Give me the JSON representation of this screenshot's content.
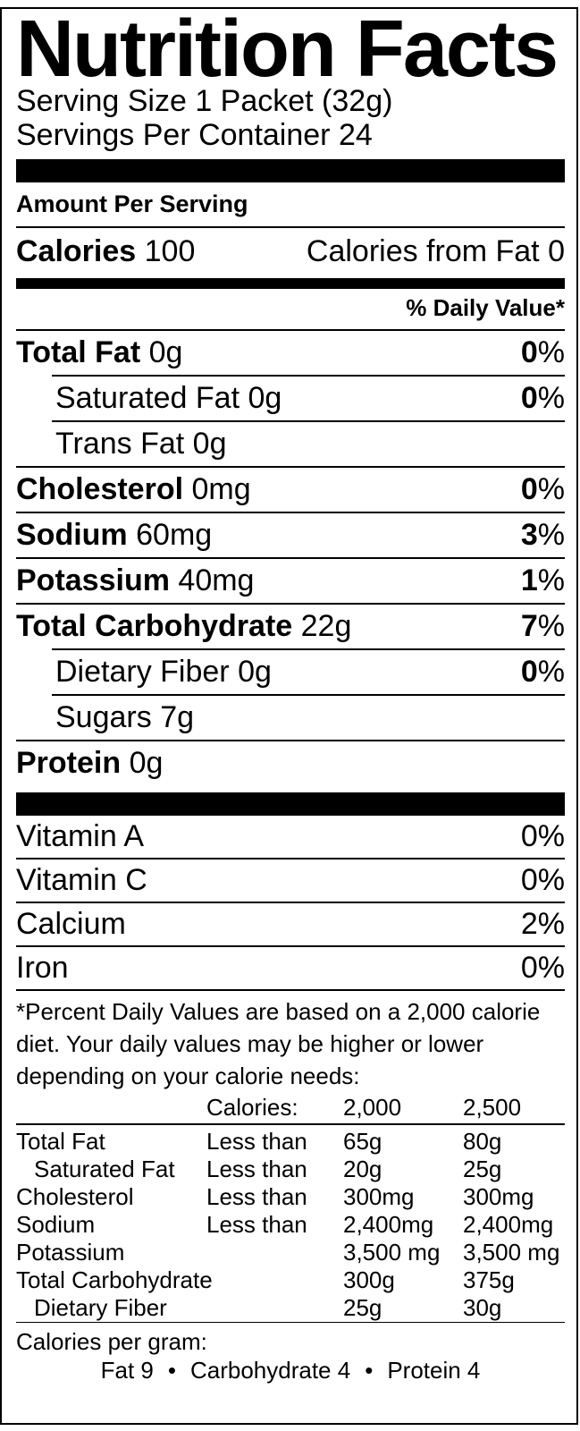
{
  "title": "Nutrition Facts",
  "serving": {
    "size_line": "Serving Size 1 Packet (32g)",
    "per_container_line": "Servings Per Container 24"
  },
  "amount_per_serving_label": "Amount Per Serving",
  "calories_row": {
    "label": "Calories",
    "value": "100",
    "from_fat_label": "Calories from Fat",
    "from_fat_value": "0"
  },
  "daily_value_header": "% Daily Value*",
  "percent_sign": "%",
  "nutrients": [
    {
      "name": "Total Fat",
      "amount": "0g",
      "dv": "0"
    },
    {
      "name": "Saturated Fat",
      "amount": "0g",
      "dv": "0"
    },
    {
      "name": "Trans Fat",
      "amount": "0g"
    },
    {
      "name": "Cholesterol",
      "amount": "0mg",
      "dv": "0"
    },
    {
      "name": "Sodium",
      "amount": "60mg",
      "dv": "3"
    },
    {
      "name": "Potassium",
      "amount": "40mg",
      "dv": "1"
    },
    {
      "name": "Total Carbohydrate",
      "amount": "22g",
      "dv": "7"
    },
    {
      "name": "Dietary Fiber",
      "amount": "0g",
      "dv": "0"
    },
    {
      "name": "Sugars",
      "amount": "7g"
    },
    {
      "name": "Protein",
      "amount": "0g"
    }
  ],
  "vitamins": [
    {
      "name": "Vitamin A",
      "dv": "0"
    },
    {
      "name": "Vitamin C",
      "dv": "0"
    },
    {
      "name": "Calcium",
      "dv": "2"
    },
    {
      "name": "Iron",
      "dv": "0"
    }
  ],
  "footnote": "*Percent Daily Values are based on a 2,000 calorie diet. Your daily values may be higher or lower depending on your calorie needs:",
  "dv_table": {
    "header": {
      "calories_label": "Calories:",
      "col_2000": "2,000",
      "col_2500": "2,500"
    },
    "rows": [
      {
        "label": "Total Fat",
        "qualifier": "Less than",
        "v2000": "65g",
        "v2500": "80g"
      },
      {
        "label": "Saturated Fat",
        "qualifier": "Less than",
        "v2000": "20g",
        "v2500": "25g"
      },
      {
        "label": "Cholesterol",
        "qualifier": "Less than",
        "v2000": "300mg",
        "v2500": "300mg"
      },
      {
        "label": "Sodium",
        "qualifier": "Less than",
        "v2000": "2,400mg",
        "v2500": "2,400mg"
      },
      {
        "label": "Potassium",
        "qualifier": "",
        "v2000": "3,500 mg",
        "v2500": "3,500 mg"
      },
      {
        "label": "Total Carbohydrate",
        "qualifier": "",
        "v2000": "300g",
        "v2500": "375g"
      },
      {
        "label": "Dietary Fiber",
        "qualifier": "",
        "v2000": "25g",
        "v2500": "30g"
      }
    ]
  },
  "calories_per_gram": {
    "label": "Calories per gram:",
    "fat": "Fat 9",
    "carbohydrate": "Carbohydrate 4",
    "protein": "Protein 4",
    "bullet": "•"
  }
}
